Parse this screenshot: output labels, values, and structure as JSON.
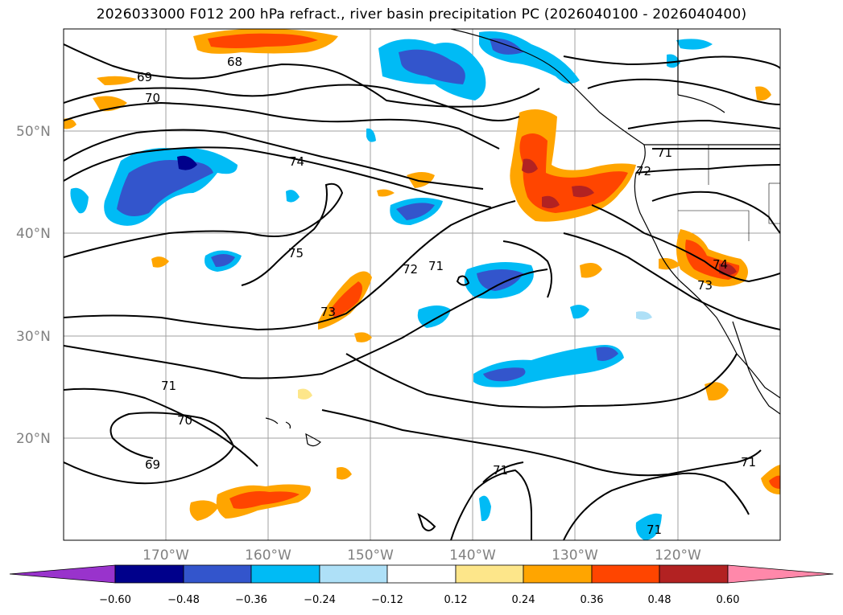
{
  "title": "2026033000 F012 200 hPa refract., river basin precipitation PC (2026040100 - 2026040400)",
  "map": {
    "lat_labels": [
      "50°N",
      "40°N",
      "30°N",
      "20°N"
    ],
    "lon_labels": [
      "170°W",
      "160°W",
      "150°W",
      "140°W",
      "130°W",
      "120°W"
    ],
    "contour_labels": [
      "69",
      "70",
      "68",
      "74",
      "75",
      "73",
      "72",
      "71",
      "71",
      "72",
      "74",
      "73",
      "71",
      "70",
      "69",
      "71",
      "71",
      "71"
    ]
  },
  "colorbar": {
    "ticks": [
      "−0.60",
      "−0.48",
      "−0.36",
      "−0.24",
      "−0.12",
      "0.12",
      "0.24",
      "0.36",
      "0.48",
      "0.60"
    ],
    "colors": [
      "#9933cc",
      "#00008b",
      "#3355cc",
      "#00bbf5",
      "#aee0f7",
      "#ffffff",
      "#fde68a",
      "#ffa500",
      "#ff4500",
      "#b22222",
      "#ff88aa"
    ]
  }
}
